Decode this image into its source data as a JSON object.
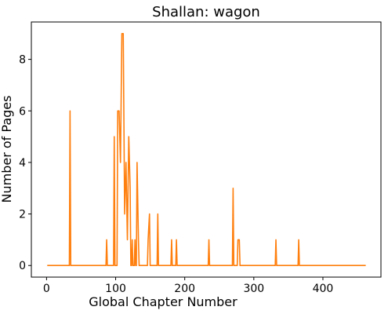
{
  "chart_data": {
    "type": "line",
    "title": "Shallan: wagon",
    "xlabel": "Global Chapter Number",
    "ylabel": "Number of Pages",
    "xlim": [
      -22,
      484
    ],
    "ylim": [
      -0.45,
      9.45
    ],
    "xticks": [
      0,
      100,
      200,
      300,
      400
    ],
    "yticks": [
      0,
      2,
      4,
      6,
      8
    ],
    "grid": false,
    "line_color": "#ff7f0e",
    "x_start": 1,
    "x_end": 462,
    "baseline": 0,
    "spikes": [
      {
        "x": 34,
        "y": 6
      },
      {
        "x": 87,
        "y": 1
      },
      {
        "x": 98,
        "y": 5
      },
      {
        "x": 103,
        "y": 6
      },
      {
        "x": 105,
        "y": 6
      },
      {
        "x": 107,
        "y": 4
      },
      {
        "x": 109,
        "y": 9
      },
      {
        "x": 111,
        "y": 9
      },
      {
        "x": 113,
        "y": 2
      },
      {
        "x": 115,
        "y": 4
      },
      {
        "x": 117,
        "y": 1
      },
      {
        "x": 119,
        "y": 5
      },
      {
        "x": 121,
        "y": 3
      },
      {
        "x": 124,
        "y": 1
      },
      {
        "x": 128,
        "y": 1
      },
      {
        "x": 131,
        "y": 4
      },
      {
        "x": 133,
        "y": 1
      },
      {
        "x": 147,
        "y": 1
      },
      {
        "x": 149,
        "y": 2
      },
      {
        "x": 161,
        "y": 2
      },
      {
        "x": 181,
        "y": 1
      },
      {
        "x": 188,
        "y": 1
      },
      {
        "x": 235,
        "y": 1
      },
      {
        "x": 270,
        "y": 3
      },
      {
        "x": 277,
        "y": 1
      },
      {
        "x": 279,
        "y": 1
      },
      {
        "x": 332,
        "y": 1
      },
      {
        "x": 365,
        "y": 1
      }
    ]
  }
}
